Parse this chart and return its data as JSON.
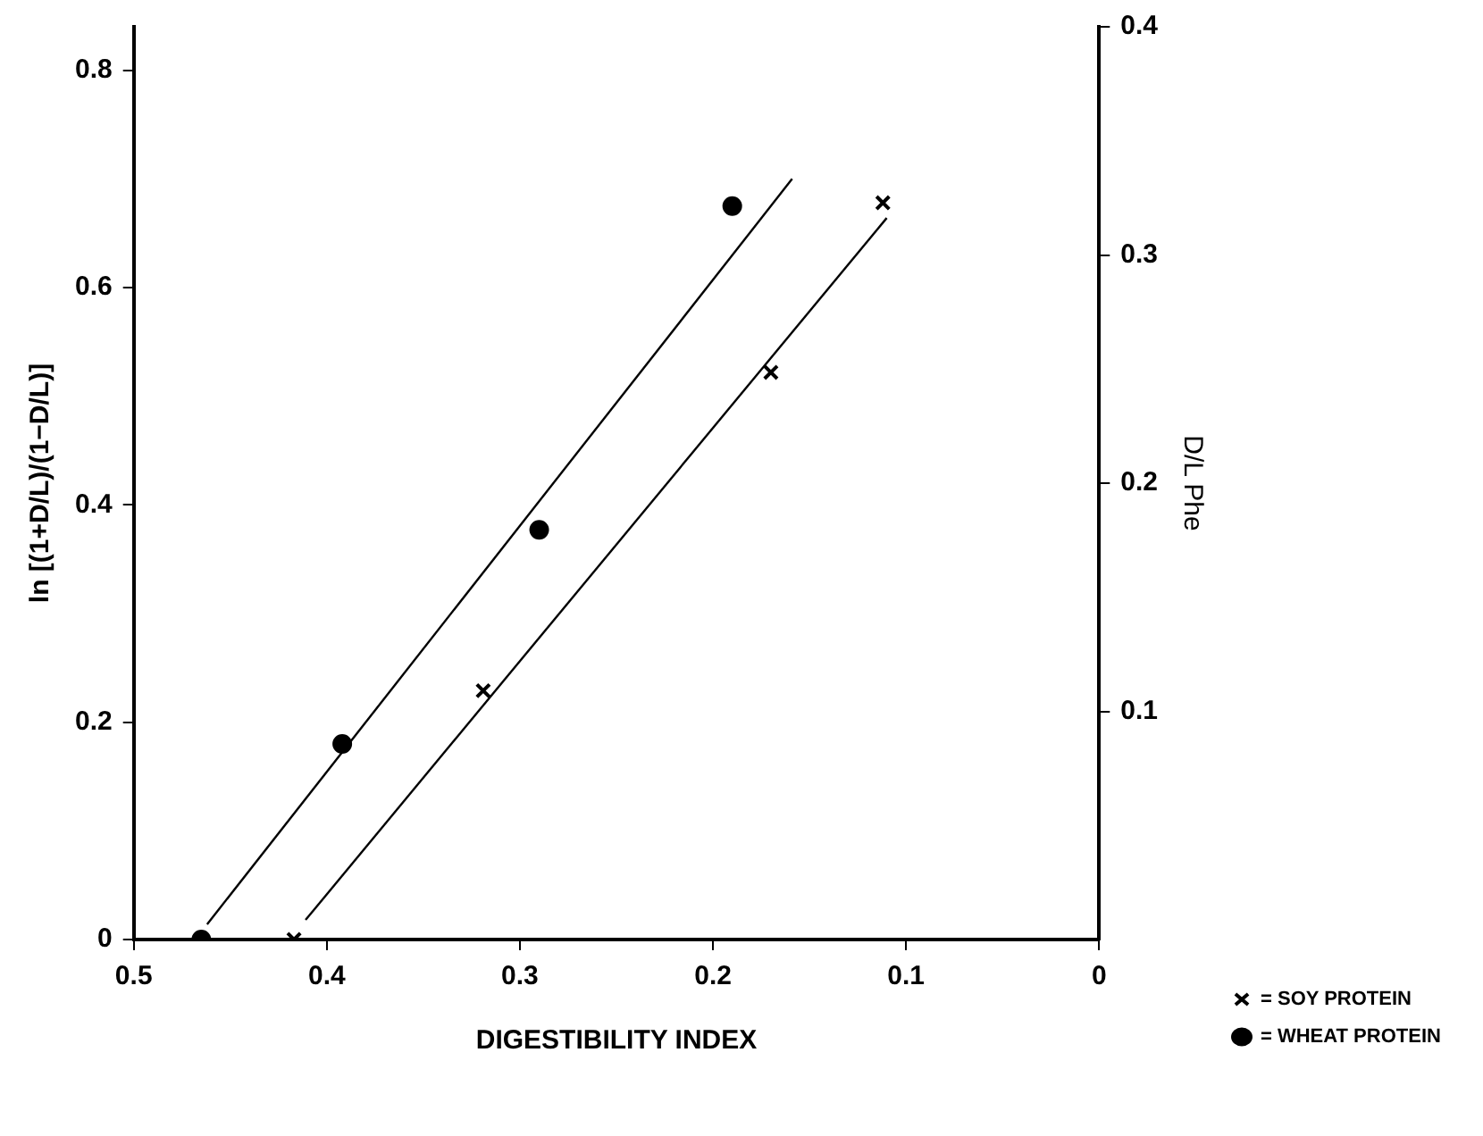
{
  "chart_data": {
    "type": "scatter",
    "xlabel": "DIGESTIBILITY INDEX",
    "ylabel": "ln [(1+D/L)/(1−D/L)]",
    "y2label": "D/L Phe",
    "xlim": [
      0.5,
      0
    ],
    "xticks": [
      0.5,
      0.4,
      0.3,
      0.2,
      0.1,
      0
    ],
    "ylim": [
      0,
      0.84
    ],
    "yticks": [
      0,
      0.2,
      0.4,
      0.6,
      0.8
    ],
    "y2lim": [
      0,
      0.4
    ],
    "y2ticks": [
      0.1,
      0.2,
      0.3,
      0.4
    ],
    "grid": false,
    "legend": "bottom right",
    "series": [
      {
        "name": "= SOY PROTEIN",
        "color": "#000000",
        "marker": "cross",
        "x": [
          0.417,
          0.319,
          0.17,
          0.112
        ],
        "values": [
          0,
          0.229,
          0.522,
          0.678
        ]
      },
      {
        "name": "= WHEAT PROTEIN",
        "color": "#000000",
        "marker": "circle",
        "x": [
          0.465,
          0.392,
          0.29,
          0.19
        ],
        "values": [
          0,
          0.18,
          0.377,
          0.675
        ]
      },
      {
        "type": "line",
        "color": "#000000",
        "marker": "none",
        "x": [
          0.411,
          0.11
        ],
        "values": [
          0.018,
          0.664
        ]
      },
      {
        "type": "line",
        "color": "#000000",
        "marker": "none",
        "x": [
          0.462,
          0.159
        ],
        "values": [
          0.014,
          0.7
        ]
      }
    ]
  }
}
